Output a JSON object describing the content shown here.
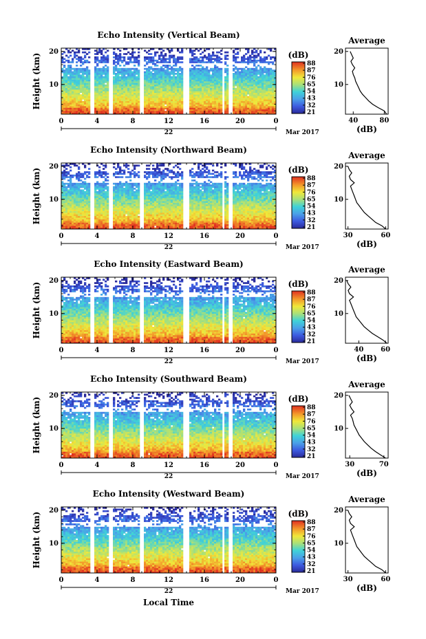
{
  "figure": {
    "date_label": "Mar 2017",
    "xlabel": "Local Time",
    "ylabel": "Height (km)",
    "colorbar_unit": "(dB)",
    "colorbar_ticks": [
      "88",
      "87",
      "76",
      "65",
      "54",
      "43",
      "32",
      "21"
    ],
    "average_title": "Average",
    "average_xlabel": "(dB)",
    "height_ticks": [
      "20",
      "10"
    ],
    "time_ticks": [
      "0",
      "4",
      "8",
      "12",
      "16",
      "20",
      "0"
    ]
  },
  "chart_data": [
    {
      "type": "heatmap",
      "title": "Echo Intensity (Vertical Beam)",
      "day_label": "22",
      "x_unit": "local time (h)",
      "xlim": [
        0,
        24
      ],
      "ylim": [
        1,
        21
      ],
      "color_range_db": [
        21,
        88
      ],
      "data_gaps_hours": [
        [
          3.3,
          3.7
        ],
        [
          5.3,
          5.7
        ],
        [
          8.8,
          9.2
        ],
        [
          13.7,
          14.2
        ],
        [
          18.1,
          18.3
        ],
        [
          18.8,
          19.1
        ]
      ],
      "average_profile": {
        "type": "line",
        "title": "Average",
        "xlabel": "(dB)",
        "xticks": [
          "40",
          "80"
        ],
        "xlim": [
          30,
          85
        ],
        "heights_km": [
          1,
          2,
          3,
          4,
          5,
          6,
          7,
          8,
          9,
          10,
          11,
          12,
          13,
          14,
          15,
          16,
          17,
          18,
          19,
          20
        ],
        "values_db": [
          83,
          80,
          72,
          65,
          60,
          56,
          52,
          49,
          47,
          45,
          43,
          42,
          40,
          39,
          42,
          39,
          37,
          40,
          38,
          36
        ]
      }
    },
    {
      "type": "heatmap",
      "title": "Echo Intensity (Northward Beam)",
      "day_label": "22",
      "x_unit": "local time (h)",
      "xlim": [
        0,
        24
      ],
      "ylim": [
        1,
        21
      ],
      "color_range_db": [
        21,
        88
      ],
      "data_gaps_hours": [
        [
          3.3,
          3.7
        ],
        [
          5.3,
          5.7
        ],
        [
          8.8,
          9.2
        ],
        [
          13.7,
          14.2
        ],
        [
          18.1,
          18.3
        ],
        [
          18.8,
          19.1
        ]
      ],
      "average_profile": {
        "type": "line",
        "title": "Average",
        "xlabel": "(dB)",
        "xticks": [
          "30",
          "60"
        ],
        "xlim": [
          28,
          62
        ],
        "heights_km": [
          1,
          2,
          3,
          4,
          5,
          6,
          7,
          8,
          9,
          10,
          11,
          12,
          13,
          14,
          15,
          16,
          17,
          18,
          19,
          20
        ],
        "values_db": [
          60,
          57,
          52,
          49,
          46,
          43,
          41,
          39,
          37,
          36,
          35,
          34,
          33,
          32,
          35,
          32,
          31,
          33,
          31,
          30
        ]
      }
    },
    {
      "type": "heatmap",
      "title": "Echo Intensity (Eastward Beam)",
      "day_label": "22",
      "x_unit": "local time (h)",
      "xlim": [
        0,
        24
      ],
      "ylim": [
        1,
        21
      ],
      "color_range_db": [
        21,
        88
      ],
      "data_gaps_hours": [
        [
          3.3,
          3.7
        ],
        [
          5.3,
          5.7
        ],
        [
          8.8,
          9.2
        ],
        [
          13.7,
          14.2
        ],
        [
          18.1,
          18.3
        ],
        [
          18.8,
          19.1
        ]
      ],
      "average_profile": {
        "type": "line",
        "title": "Average",
        "xlabel": "(dB)",
        "xticks": [
          "40",
          "60"
        ],
        "xlim": [
          30,
          62
        ],
        "heights_km": [
          1,
          2,
          3,
          4,
          5,
          6,
          7,
          8,
          9,
          10,
          11,
          12,
          13,
          14,
          15,
          16,
          17,
          18,
          19,
          20
        ],
        "values_db": [
          61,
          58,
          54,
          50,
          47,
          44,
          42,
          40,
          38,
          37,
          36,
          35,
          34,
          33,
          36,
          33,
          32,
          34,
          32,
          31
        ]
      }
    },
    {
      "type": "heatmap",
      "title": "Echo Intensity (Southward Beam)",
      "day_label": "22",
      "x_unit": "local time (h)",
      "xlim": [
        0,
        24
      ],
      "ylim": [
        1,
        21
      ],
      "color_range_db": [
        21,
        88
      ],
      "data_gaps_hours": [
        [
          3.3,
          3.7
        ],
        [
          5.3,
          5.7
        ],
        [
          8.8,
          9.2
        ],
        [
          13.7,
          14.2
        ],
        [
          18.1,
          18.3
        ],
        [
          18.8,
          19.1
        ]
      ],
      "average_profile": {
        "type": "line",
        "title": "Average",
        "xlabel": "(dB)",
        "xticks": [
          "30",
          "70"
        ],
        "xlim": [
          25,
          75
        ],
        "heights_km": [
          1,
          2,
          3,
          4,
          5,
          6,
          7,
          8,
          9,
          10,
          11,
          12,
          13,
          14,
          15,
          16,
          17,
          18,
          19,
          20
        ],
        "values_db": [
          72,
          66,
          60,
          55,
          51,
          47,
          44,
          41,
          39,
          37,
          35,
          34,
          33,
          31,
          35,
          32,
          30,
          33,
          31,
          29
        ]
      }
    },
    {
      "type": "heatmap",
      "title": "Echo Intensity (Westward Beam)",
      "day_label": "22",
      "x_unit": "local time (h)",
      "xlim": [
        0,
        24
      ],
      "ylim": [
        1,
        21
      ],
      "color_range_db": [
        21,
        88
      ],
      "data_gaps_hours": [
        [
          3.3,
          3.7
        ],
        [
          5.3,
          5.7
        ],
        [
          8.8,
          9.2
        ],
        [
          13.7,
          14.2
        ],
        [
          18.1,
          18.3
        ],
        [
          18.8,
          19.1
        ]
      ],
      "average_profile": {
        "type": "line",
        "title": "Average",
        "xlabel": "(dB)",
        "xticks": [
          "30",
          "60"
        ],
        "xlim": [
          28,
          62
        ],
        "heights_km": [
          1,
          2,
          3,
          4,
          5,
          6,
          7,
          8,
          9,
          10,
          11,
          12,
          13,
          14,
          15,
          16,
          17,
          18,
          19,
          20
        ],
        "values_db": [
          60,
          57,
          52,
          49,
          46,
          43,
          41,
          39,
          37,
          36,
          35,
          34,
          33,
          32,
          35,
          32,
          31,
          33,
          31,
          30
        ]
      }
    }
  ]
}
